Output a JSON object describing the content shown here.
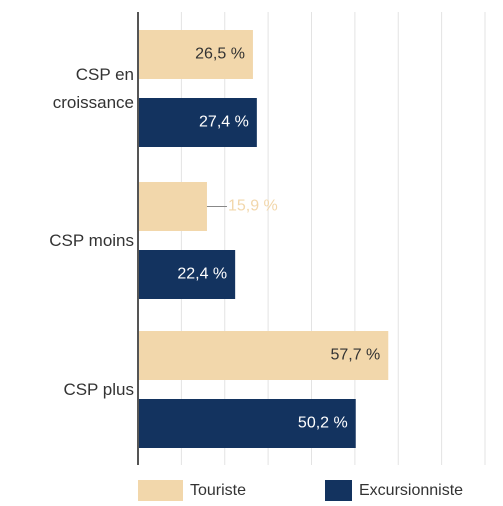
{
  "chart_data": {
    "type": "hbar",
    "categories": [
      "CSP en croissance",
      "CSP moins",
      "CSP plus"
    ],
    "series": [
      {
        "name": "Touriste",
        "color": "#f2d7ab",
        "values": [
          26.5,
          15.9,
          57.7
        ],
        "value_labels": [
          "26,5 %",
          "15,9 %",
          "57,7 %"
        ]
      },
      {
        "name": "Excursionniste",
        "color": "#13335f",
        "values": [
          27.4,
          22.4,
          50.2
        ],
        "value_labels": [
          "27,4 %",
          "22,4 %",
          "50,2 %"
        ]
      }
    ],
    "xlim": [
      0,
      80
    ],
    "xticks": [
      0,
      10,
      20,
      30,
      40,
      50,
      60,
      70,
      80
    ],
    "grid": true
  }
}
